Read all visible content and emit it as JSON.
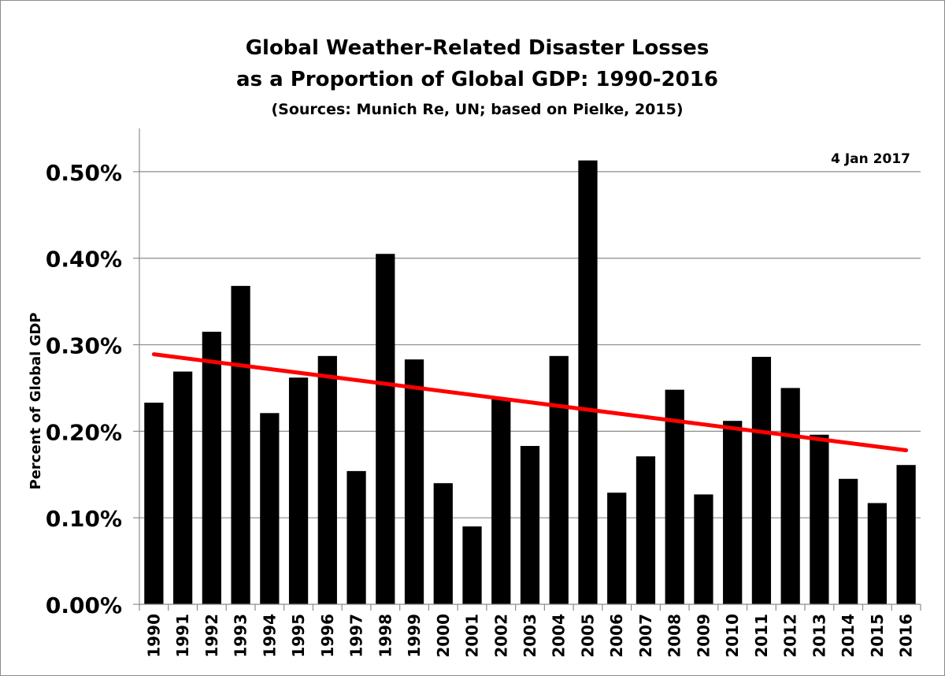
{
  "chart_data": {
    "type": "bar",
    "title_lines": [
      "Global Weather-Related Disaster Losses",
      "as a Proportion of Global GDP: 1990-2016"
    ],
    "subtitle": "(Sources: Munich Re, UN; based on Pielke, 2015)",
    "annotation": "4 Jan 2017",
    "xlabel": "",
    "ylabel": "Percent of Global GDP",
    "ylim": [
      0,
      0.55
    ],
    "yticks": [
      0,
      0.1,
      0.2,
      0.3,
      0.4,
      0.5
    ],
    "ytick_labels": [
      "0.00%",
      "0.10%",
      "0.20%",
      "0.30%",
      "0.40%",
      "0.50%"
    ],
    "grid": true,
    "categories": [
      "1990",
      "1991",
      "1992",
      "1993",
      "1994",
      "1995",
      "1996",
      "1997",
      "1998",
      "1999",
      "2000",
      "2001",
      "2002",
      "2003",
      "2004",
      "2005",
      "2006",
      "2007",
      "2008",
      "2009",
      "2010",
      "2011",
      "2012",
      "2013",
      "2014",
      "2015",
      "2016"
    ],
    "values": [
      0.233,
      0.269,
      0.315,
      0.368,
      0.221,
      0.262,
      0.287,
      0.154,
      0.405,
      0.283,
      0.14,
      0.09,
      0.237,
      0.183,
      0.287,
      0.513,
      0.129,
      0.171,
      0.248,
      0.127,
      0.212,
      0.286,
      0.25,
      0.196,
      0.145,
      0.117,
      0.161
    ],
    "bar_color": "#000000",
    "trendline": {
      "color": "#ff0000",
      "start_value": 0.289,
      "end_value": 0.178
    }
  }
}
